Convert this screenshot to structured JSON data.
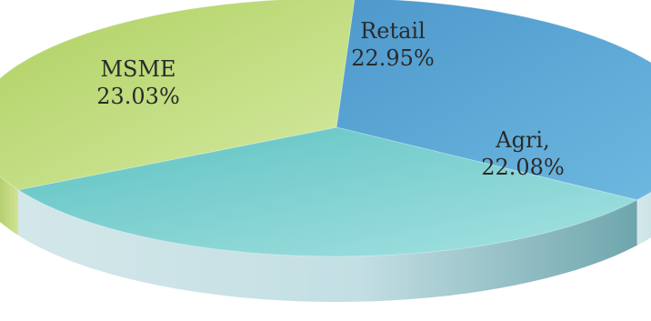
{
  "chart_data": {
    "type": "pie",
    "style": "3d",
    "title": "",
    "slices": [
      {
        "label": "Retail",
        "label_text": "Retail",
        "value": 22.95,
        "value_text": "22.95%",
        "color": "#4f9fd0"
      },
      {
        "label": "Agri",
        "label_text": "Agri,",
        "value": 22.08,
        "value_text": "22.08%",
        "color": "#64c8c4"
      },
      {
        "label": "MSME",
        "label_text": "MSME",
        "value": 23.03,
        "value_text": "23.03%",
        "color": "#b6d46a"
      }
    ]
  }
}
